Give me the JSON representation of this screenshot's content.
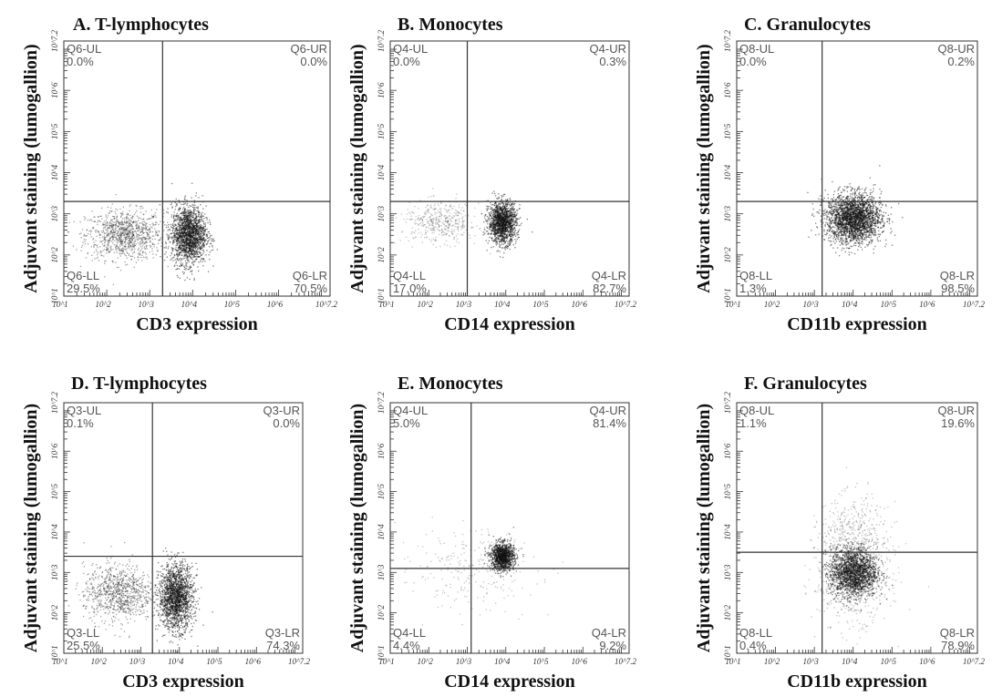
{
  "chart_data": [
    {
      "type": "scatter",
      "title": "A. T-lymphocytes",
      "xlabel": "CD3 expression",
      "ylabel": "Adjuvant staining (lumogallion)",
      "xlim": [
        1,
        7.2
      ],
      "ylim": [
        1,
        7.2
      ],
      "x_scale": "log10",
      "gate": {
        "x": 3.3,
        "y": 3.3
      },
      "quadrants": {
        "UL": "Q6-UL",
        "UL_pct": "0.0%",
        "UR": "Q6-UR",
        "UR_pct": "0.0%",
        "LL": "Q6-LL",
        "LL_pct": "29.5%",
        "LR": "Q6-LR",
        "LR_pct": "70.5%"
      },
      "clusters": [
        {
          "cx": 2.4,
          "cy": 2.5,
          "sx": 0.45,
          "sy": 0.3,
          "n": 1000,
          "density": "medium"
        },
        {
          "cx": 3.9,
          "cy": 2.5,
          "sx": 0.2,
          "sy": 0.35,
          "n": 1800,
          "density": "high"
        }
      ]
    },
    {
      "type": "scatter",
      "title": "B. Monocytes",
      "xlabel": "CD14 expression",
      "ylabel": "Adjuvant staining (lumogallion)",
      "xlim": [
        1,
        7.2
      ],
      "ylim": [
        1,
        7.2
      ],
      "x_scale": "log10",
      "gate": {
        "x": 3.0,
        "y": 3.3
      },
      "quadrants": {
        "UL": "Q4-UL",
        "UL_pct": "0.0%",
        "UR": "Q4-UR",
        "UR_pct": "0.3%",
        "LL": "Q4-LL",
        "LL_pct": "17.0%",
        "LR": "Q4-LR",
        "LR_pct": "82.7%"
      },
      "clusters": [
        {
          "cx": 2.3,
          "cy": 2.8,
          "sx": 0.5,
          "sy": 0.25,
          "n": 450,
          "density": "low"
        },
        {
          "cx": 3.9,
          "cy": 2.8,
          "sx": 0.18,
          "sy": 0.25,
          "n": 1500,
          "density": "high"
        }
      ]
    },
    {
      "type": "scatter",
      "title": "C. Granulocytes",
      "xlabel": "CD11b expression",
      "ylabel": "Adjuvant staining (lumogallion)",
      "xlim": [
        1,
        7.2
      ],
      "ylim": [
        1,
        7.2
      ],
      "x_scale": "log10",
      "gate": {
        "x": 3.2,
        "y": 3.3
      },
      "quadrants": {
        "UL": "Q8-UL",
        "UL_pct": "0.0%",
        "UR": "Q8-UR",
        "UR_pct": "0.2%",
        "LL": "Q8-LL",
        "LL_pct": "1.3%",
        "LR": "Q8-LR",
        "LR_pct": "98.5%"
      },
      "clusters": [
        {
          "cx": 4.0,
          "cy": 2.9,
          "sx": 0.35,
          "sy": 0.3,
          "n": 2500,
          "density": "high"
        }
      ]
    },
    {
      "type": "scatter",
      "title": "D. T-lymphocytes",
      "xlabel": "CD3 expression",
      "ylabel": "Adjuvant staining (lumogallion)",
      "xlim": [
        1,
        7.2
      ],
      "ylim": [
        1,
        7.2
      ],
      "x_scale": "log10",
      "gate": {
        "x": 3.3,
        "y": 3.4
      },
      "quadrants": {
        "UL": "Q3-UL",
        "UL_pct": "0.1%",
        "UR": "Q3-UR",
        "UR_pct": "0.0%",
        "LL": "Q3-LL",
        "LL_pct": "25.5%",
        "LR": "Q3-LR",
        "LR_pct": "74.3%"
      },
      "clusters": [
        {
          "cx": 2.4,
          "cy": 2.5,
          "sx": 0.45,
          "sy": 0.35,
          "n": 900,
          "density": "medium"
        },
        {
          "cx": 3.9,
          "cy": 2.4,
          "sx": 0.22,
          "sy": 0.4,
          "n": 1800,
          "density": "high"
        }
      ]
    },
    {
      "type": "scatter",
      "title": "E. Monocytes",
      "xlabel": "CD14 expression",
      "ylabel": "Adjuvant staining (lumogallion)",
      "xlim": [
        1,
        7.2
      ],
      "ylim": [
        1,
        7.2
      ],
      "x_scale": "log10",
      "gate": {
        "x": 3.1,
        "y": 3.1
      },
      "quadrants": {
        "UL": "Q4-UL",
        "UL_pct": "5.0%",
        "UR": "Q4-UR",
        "UR_pct": "81.4%",
        "LL": "Q4-LL",
        "LL_pct": "4.4%",
        "LR": "Q4-LR",
        "LR_pct": "9.2%"
      },
      "clusters": [
        {
          "cx": 3.9,
          "cy": 3.4,
          "sx": 0.15,
          "sy": 0.17,
          "n": 1200,
          "density": "high"
        },
        {
          "cx": 3.0,
          "cy": 3.1,
          "sx": 0.9,
          "sy": 0.5,
          "n": 250,
          "density": "low"
        }
      ]
    },
    {
      "type": "scatter",
      "title": "F. Granulocytes",
      "xlabel": "CD11b expression",
      "ylabel": "Adjuvant staining (lumogallion)",
      "xlim": [
        1,
        7.2
      ],
      "ylim": [
        1,
        7.2
      ],
      "x_scale": "log10",
      "gate": {
        "x": 3.2,
        "y": 3.5
      },
      "quadrants": {
        "UL": "Q8-UL",
        "UL_pct": "1.1%",
        "UR": "Q8-UR",
        "UR_pct": "19.6%",
        "LL": "Q8-LL",
        "LL_pct": "0.4%",
        "LR": "Q8-LR",
        "LR_pct": "78.9%"
      },
      "clusters": [
        {
          "cx": 4.0,
          "cy": 3.0,
          "sx": 0.3,
          "sy": 0.3,
          "n": 1800,
          "density": "high"
        },
        {
          "cx": 4.0,
          "cy": 3.3,
          "sx": 0.45,
          "sy": 0.7,
          "n": 1200,
          "density": "low"
        }
      ]
    }
  ]
}
